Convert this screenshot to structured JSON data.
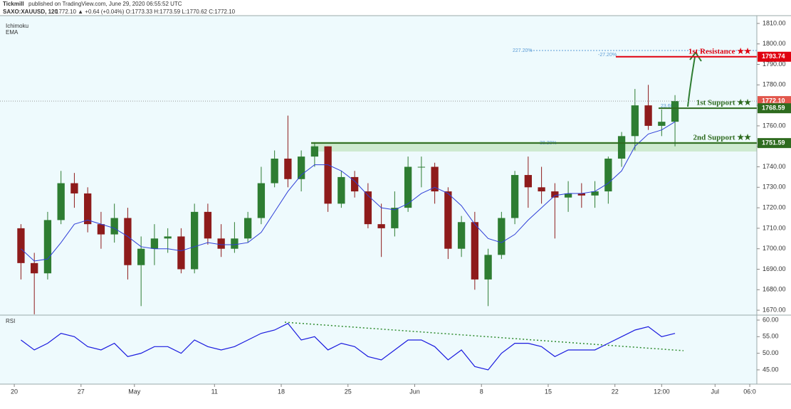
{
  "header": {
    "brand": "Tickmill",
    "published": "published on TradingView.com, June 29, 2020 06:55:52 UTC",
    "symbol": "SAXO:XAUUSD, 120",
    "quote": "1772.10 ▲ +0.64 (+0.04%) O:1773.33 H:1773.59 L:1770.62 C:1772.10"
  },
  "chart_data": [
    {
      "type": "candlestick",
      "indicators": [
        "Ichimoku",
        "EMA"
      ],
      "open": [
        1710,
        1693,
        1688,
        1714,
        1732,
        1727,
        1712,
        1707,
        1715,
        1692,
        1700,
        1705,
        1706,
        1690,
        1718,
        1705,
        1700,
        1705,
        1715,
        1732,
        1744,
        1734,
        1745,
        1750,
        1722,
        1735,
        1728,
        1712,
        1710,
        1720,
        1740,
        1740,
        1728,
        1700,
        1713,
        1685,
        1697,
        1715,
        1736,
        1730,
        1728,
        1725,
        1727,
        1726,
        1728,
        1744,
        1755,
        1770,
        1760,
        1762
      ],
      "high": [
        1712,
        1698,
        1718,
        1738,
        1737,
        1730,
        1718,
        1722,
        1720,
        1706,
        1712,
        1710,
        1710,
        1722,
        1722,
        1712,
        1713,
        1718,
        1740,
        1748,
        1765,
        1748,
        1752,
        1750,
        1738,
        1738,
        1732,
        1722,
        1728,
        1745,
        1745,
        1742,
        1730,
        1716,
        1718,
        1700,
        1718,
        1738,
        1745,
        1740,
        1732,
        1733,
        1732,
        1733,
        1745,
        1757,
        1778,
        1780,
        1768,
        1775
      ],
      "low": [
        1685,
        1668,
        1685,
        1712,
        1720,
        1708,
        1700,
        1703,
        1685,
        1672,
        1692,
        1698,
        1688,
        1688,
        1702,
        1696,
        1698,
        1703,
        1712,
        1730,
        1730,
        1728,
        1740,
        1718,
        1720,
        1725,
        1710,
        1696,
        1706,
        1718,
        1730,
        1722,
        1695,
        1696,
        1680,
        1672,
        1695,
        1712,
        1720,
        1722,
        1705,
        1718,
        1720,
        1720,
        1722,
        1740,
        1748,
        1758,
        1755,
        1750
      ],
      "close": [
        1693,
        1688,
        1714,
        1732,
        1727,
        1712,
        1707,
        1715,
        1692,
        1700,
        1705,
        1706,
        1690,
        1718,
        1705,
        1700,
        1705,
        1715,
        1732,
        1744,
        1734,
        1745,
        1750,
        1722,
        1735,
        1728,
        1712,
        1710,
        1720,
        1740,
        1740,
        1728,
        1700,
        1713,
        1685,
        1697,
        1715,
        1736,
        1730,
        1728,
        1725,
        1727,
        1726,
        1728,
        1744,
        1755,
        1770,
        1760,
        1762,
        1772.1
      ],
      "up_color": "#2e7d32",
      "down_color": "#8e1b1b",
      "ema": {
        "color": "#2f3fd8",
        "values": [
          1700,
          1694,
          1695,
          1703,
          1712,
          1714,
          1712,
          1710,
          1706,
          1701,
          1700,
          1700,
          1699,
          1701,
          1703,
          1702,
          1702,
          1703,
          1708,
          1718,
          1728,
          1736,
          1741,
          1741,
          1738,
          1733,
          1726,
          1720,
          1719,
          1722,
          1727,
          1730,
          1727,
          1721,
          1712,
          1705,
          1703,
          1707,
          1714,
          1720,
          1726,
          1727,
          1727,
          1728,
          1732,
          1738,
          1750,
          1756,
          1758,
          1762
        ]
      },
      "xlim": [
        -1.07,
        55.63
      ],
      "xticks": [
        {
          "value": 0,
          "label": "20"
        },
        {
          "value": 5,
          "label": "27"
        },
        {
          "value": 9,
          "label": "May"
        },
        {
          "value": 15,
          "label": "11"
        },
        {
          "value": 20,
          "label": "18"
        },
        {
          "value": 25,
          "label": "25"
        },
        {
          "value": 30,
          "label": "Jun"
        },
        {
          "value": 35,
          "label": "8"
        },
        {
          "value": 40,
          "label": "15"
        },
        {
          "value": 45,
          "label": "22"
        },
        {
          "value": 48.5,
          "label": "12:00"
        },
        {
          "value": 52.5,
          "label": "Jul"
        },
        {
          "value": 55.1,
          "label": "06:0"
        }
      ],
      "ylim": [
        1667.6,
        1813.8
      ],
      "yticks": [
        {
          "value": 1670,
          "label": "1670.00"
        },
        {
          "value": 1680,
          "label": "1680.00"
        },
        {
          "value": 1690,
          "label": "1690.00"
        },
        {
          "value": 1700,
          "label": "1700.00"
        },
        {
          "value": 1710,
          "label": "1710.00"
        },
        {
          "value": 1720,
          "label": "1720.00"
        },
        {
          "value": 1730,
          "label": "1730.00"
        },
        {
          "value": 1740,
          "label": "1740.00"
        },
        {
          "value": 1750,
          "label": "1750.00"
        },
        {
          "value": 1760,
          "label": "1760.00"
        },
        {
          "value": 1770,
          "label": "1770.00"
        },
        {
          "value": 1780,
          "label": "1780.00"
        },
        {
          "value": 1790,
          "label": "1790.00"
        },
        {
          "value": 1800,
          "label": "1800.00"
        },
        {
          "value": 1810,
          "label": "1810.00"
        }
      ],
      "levels": [
        {
          "value": 1793.74,
          "label": "1793.74",
          "color": "#e0000f",
          "text": "1st Resistance ★★"
        },
        {
          "value": 1772.1,
          "label": "1772.10",
          "color": "#e2574c"
        },
        {
          "value": 1768.59,
          "label": "1768.59",
          "color": "#2e6b1f",
          "text": "1st Support ★★"
        },
        {
          "value": 1751.59,
          "label": "1751.59",
          "color": "#2e6b1f",
          "text": "2nd Support ★★"
        }
      ],
      "fib_labels": [
        "227.20%",
        "-27.20%",
        "23.60%",
        "38.20%"
      ]
    },
    {
      "type": "line",
      "title": "RSI",
      "color": "#1a1adf",
      "values": [
        54,
        51,
        53,
        56,
        55,
        52,
        51,
        53,
        49,
        50,
        52,
        52,
        50,
        54,
        52,
        51,
        52,
        54,
        56,
        57,
        59,
        54,
        55,
        51,
        53,
        52,
        49,
        48,
        51,
        54,
        54,
        52,
        48,
        51,
        46,
        45,
        50,
        53,
        53,
        52,
        49,
        51,
        51,
        51,
        53,
        55,
        57,
        58,
        55,
        56
      ],
      "ylim": [
        40.7,
        61.5
      ],
      "yticks": [
        {
          "value": 45,
          "label": "45.00"
        },
        {
          "value": 50,
          "label": "50.00"
        },
        {
          "value": 55,
          "label": "55.00"
        },
        {
          "value": 60,
          "label": "60.00"
        }
      ]
    }
  ]
}
